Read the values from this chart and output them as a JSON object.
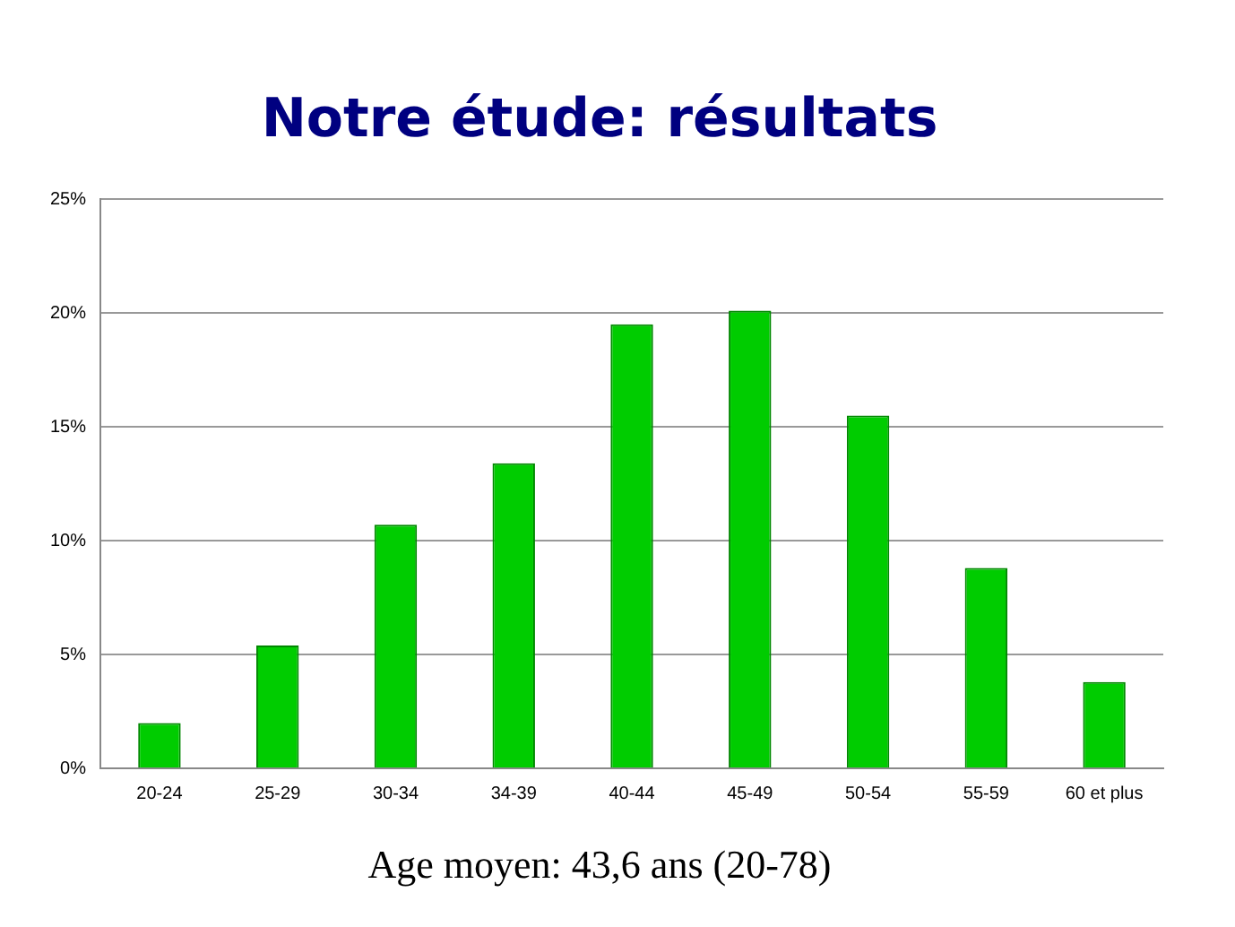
{
  "chart_data": {
    "type": "bar",
    "title": "Notre étude: résultats",
    "categories": [
      "20-24",
      "25-29",
      "30-34",
      "34-39",
      "40-44",
      "45-49",
      "50-54",
      "55-59",
      "60 et plus"
    ],
    "values": [
      2.0,
      5.4,
      10.7,
      13.4,
      19.5,
      20.1,
      15.5,
      8.8,
      3.8
    ],
    "color": "#00cc00",
    "ylim": [
      0,
      25
    ],
    "yticks": [
      {
        "value": 0,
        "label": "0%"
      },
      {
        "value": 5,
        "label": "5%"
      },
      {
        "value": 10,
        "label": "10%"
      },
      {
        "value": 15,
        "label": "15%"
      },
      {
        "value": 20,
        "label": "20%"
      },
      {
        "value": 25,
        "label": "25%"
      }
    ],
    "grid": "y",
    "annotations": [
      "Age moyen: 43,6 ans (20-78)"
    ]
  }
}
